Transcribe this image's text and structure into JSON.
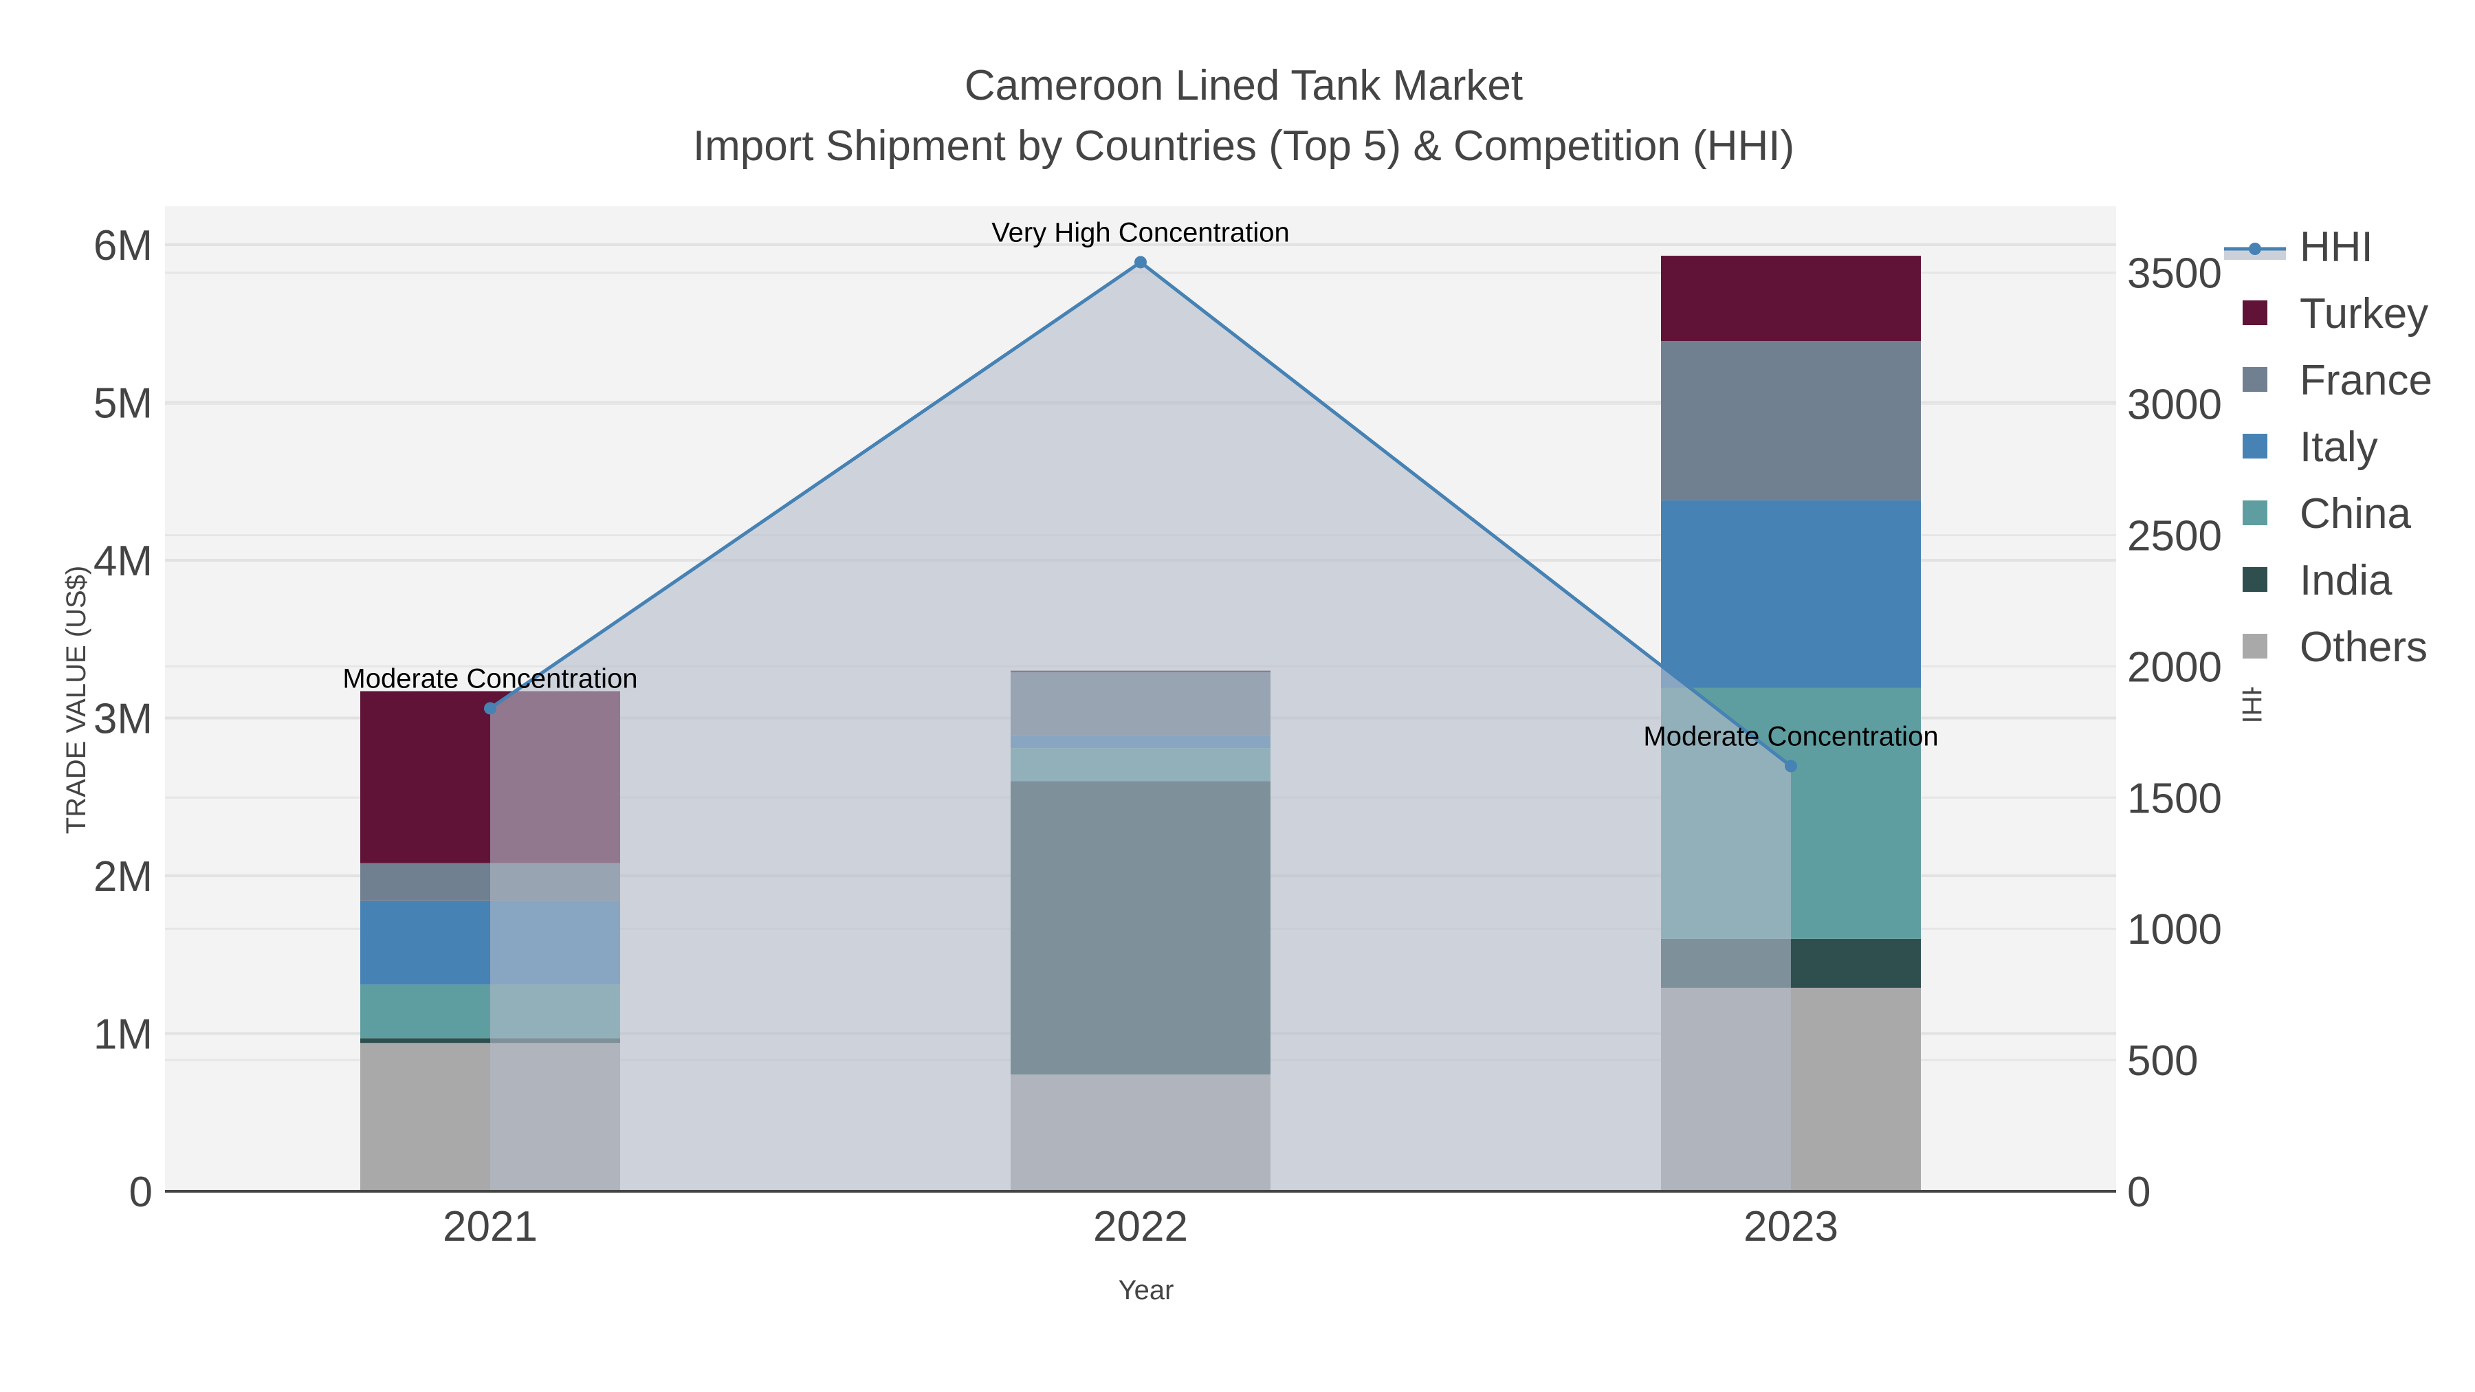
{
  "title": {
    "line1": "Cameroon Lined Tank Market",
    "line2": "Import Shipment by Countries (Top 5) & Competition (HHI)"
  },
  "axes": {
    "x_title": "Year",
    "y_left_title": "TRADE VALUE (US$)",
    "y_right_title": "HHI",
    "x_ticks": [
      "2021",
      "2022",
      "2023"
    ],
    "y_left_ticks": [
      "0",
      "1M",
      "2M",
      "3M",
      "4M",
      "5M",
      "6M"
    ],
    "y_right_ticks": [
      "0",
      "500",
      "1000",
      "1500",
      "2000",
      "2500",
      "3000",
      "3500"
    ]
  },
  "legend": {
    "items": [
      {
        "label": "HHI",
        "color": "#4682b4",
        "type": "line"
      },
      {
        "label": "Turkey",
        "color": "#601336",
        "type": "bar"
      },
      {
        "label": "France",
        "color": "#708090",
        "type": "bar"
      },
      {
        "label": "Italy",
        "color": "#4682b4",
        "type": "bar"
      },
      {
        "label": "China",
        "color": "#5f9ea0",
        "type": "bar"
      },
      {
        "label": "India",
        "color": "#2f4f4f",
        "type": "bar"
      },
      {
        "label": "Others",
        "color": "#a9a9a9",
        "type": "bar"
      }
    ]
  },
  "annotations": [
    {
      "year": "2021",
      "text": "Moderate Concentration"
    },
    {
      "year": "2022",
      "text": "Very High Concentration"
    },
    {
      "year": "2023",
      "text": "Moderate Concentration"
    }
  ],
  "chart_data": {
    "type": "bar",
    "stacked": true,
    "title": "Cameroon Lined Tank Market — Import Shipment by Countries (Top 5) & Competition (HHI)",
    "xlabel": "Year",
    "ylabel": "TRADE VALUE (US$)",
    "y2label": "HHI",
    "categories": [
      "2021",
      "2022",
      "2023"
    ],
    "ylim": [
      0,
      6240000
    ],
    "y2lim": [
      0,
      3750
    ],
    "grid": true,
    "legend_position": "right",
    "series": [
      {
        "name": "Others",
        "color": "#a9a9a9",
        "values": [
          940000,
          740000,
          1290000
        ]
      },
      {
        "name": "India",
        "color": "#2f4f4f",
        "values": [
          30000,
          1860000,
          310000
        ]
      },
      {
        "name": "China",
        "color": "#5f9ea0",
        "values": [
          340000,
          210000,
          1590000
        ]
      },
      {
        "name": "Italy",
        "color": "#4682b4",
        "values": [
          530000,
          80000,
          1190000
        ]
      },
      {
        "name": "France",
        "color": "#708090",
        "values": [
          240000,
          400000,
          1010000
        ]
      },
      {
        "name": "Turkey",
        "color": "#601336",
        "values": [
          1090000,
          10000,
          540000
        ]
      }
    ],
    "line_series": {
      "name": "HHI",
      "axis": "y2",
      "color": "#4682b4",
      "fill": "tozeroy",
      "values": [
        1840,
        3540,
        1620
      ],
      "labels": [
        "Moderate Concentration",
        "Very High Concentration",
        "Moderate Concentration"
      ]
    }
  }
}
